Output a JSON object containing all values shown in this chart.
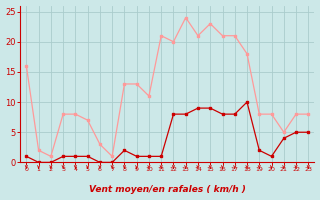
{
  "hours": [
    0,
    1,
    2,
    3,
    4,
    5,
    6,
    7,
    8,
    9,
    10,
    11,
    12,
    13,
    14,
    15,
    16,
    17,
    18,
    19,
    20,
    21,
    22,
    23
  ],
  "wind_avg": [
    1,
    0,
    0,
    1,
    1,
    1,
    0,
    0,
    2,
    1,
    1,
    1,
    8,
    8,
    9,
    9,
    8,
    8,
    10,
    2,
    1,
    4,
    5,
    5
  ],
  "wind_gust": [
    16,
    2,
    1,
    8,
    8,
    7,
    3,
    1,
    13,
    13,
    11,
    21,
    20,
    24,
    21,
    23,
    21,
    21,
    18,
    8,
    8,
    5,
    8,
    8
  ],
  "bg_color": "#cce8e8",
  "grid_color": "#aacccc",
  "line_avg_color": "#cc0000",
  "line_gust_color": "#ff9999",
  "xlabel": "Vent moyen/en rafales ( km/h )",
  "xlabel_color": "#cc0000",
  "tick_color": "#cc0000",
  "arrow_color": "#cc0000",
  "ylim": [
    0,
    26
  ],
  "yticks": [
    0,
    5,
    10,
    15,
    20,
    25
  ]
}
